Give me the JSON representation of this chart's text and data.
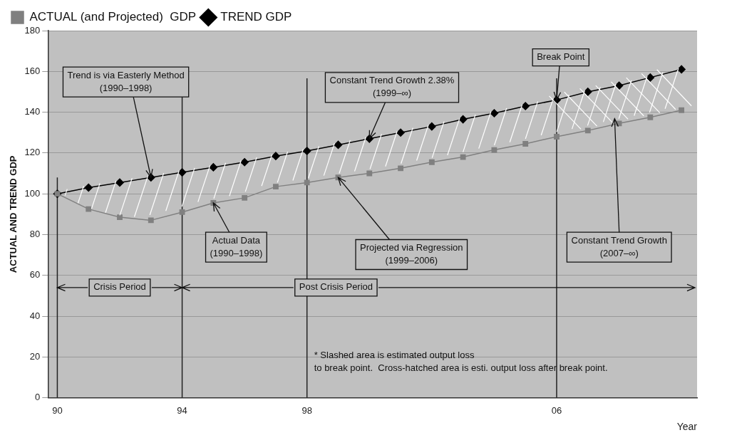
{
  "chart_data": {
    "type": "line",
    "ylabel": "ACTUAL AND TREND GDP",
    "xlabel": "Year",
    "x": [
      1990,
      1991,
      1992,
      1993,
      1994,
      1995,
      1996,
      1997,
      1998,
      1999,
      2000,
      2001,
      2002,
      2003,
      2004,
      2005,
      2006,
      2007,
      2008,
      2009,
      2010
    ],
    "series": [
      {
        "name": "TREND GDP",
        "color": "#000000",
        "marker": "diamond",
        "values": [
          100,
          103,
          105.5,
          108,
          110.5,
          113,
          115.5,
          118.5,
          121,
          124,
          127,
          130,
          133,
          136.5,
          139.5,
          143,
          146,
          150,
          153,
          157,
          161
        ]
      },
      {
        "name": "ACTUAL (and Projected)  GDP",
        "color": "#808080",
        "marker": "square",
        "values": [
          100,
          92.5,
          88.5,
          87,
          91,
          95.5,
          98,
          103.5,
          105.5,
          108,
          110,
          112.5,
          115.5,
          118,
          121.5,
          124.5,
          128,
          131,
          134.5,
          137.5,
          141
        ]
      }
    ],
    "xlim": [
      1989.7,
      2010.5
    ],
    "xticks": [
      {
        "value": 1990,
        "label": "90"
      },
      {
        "value": 1994,
        "label": "94"
      },
      {
        "value": 1998,
        "label": "98"
      },
      {
        "value": 2006,
        "label": "06"
      }
    ],
    "ylim": [
      0,
      180
    ],
    "yticks": [
      0,
      20,
      40,
      60,
      80,
      100,
      120,
      140,
      160,
      180
    ],
    "grid": "y",
    "legend": "top",
    "ref_lines": [
      {
        "axis": "x",
        "value": 1990
      },
      {
        "axis": "x",
        "value": 1994
      },
      {
        "axis": "x",
        "value": 1998
      },
      {
        "axis": "x",
        "value": 2006
      }
    ],
    "annotations": [
      {
        "text": "Trend is via Easterly Method\n(1990–1998)",
        "x": 1993,
        "y": 108
      },
      {
        "text": "Constant Trend Growth 2.38%\n(1999–∞)",
        "x": 2000,
        "y": 127
      },
      {
        "text": "Break Point",
        "x": 2006,
        "y": 146
      },
      {
        "text": "Actual Data\n(1990–1998)",
        "x": 1995,
        "y": 95.5
      },
      {
        "text": "Projected via Regression\n(1999–2006)",
        "x": 1999,
        "y": 108
      },
      "Constant Trend Growth\n(2007–∞)",
      {
        "text": "Crisis Period",
        "x": 1990,
        "y": 54
      },
      {
        "text": "Post Crisis Period",
        "x": 1994,
        "y": 54
      },
      "* Slashed area is estimated output loss\nto break point.  Cross-hatched area is esti. output loss after break point."
    ]
  }
}
